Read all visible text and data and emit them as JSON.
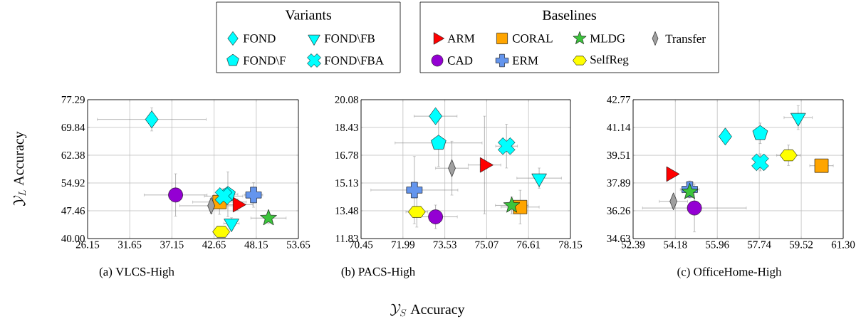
{
  "chart_data": [
    {
      "type": "scatter",
      "title": "(a) VLCS-High",
      "ylabel": "\\mathcal{Y}_L \\text{ Accuracy}",
      "grid": true,
      "legend": "top",
      "legend_title": [
        "Variants",
        "Baselines"
      ],
      "xlim": [
        26.15,
        53.65
      ],
      "xticks": [
        26.15,
        31.65,
        37.15,
        42.65,
        48.15,
        53.65
      ],
      "ylim": [
        40,
        77.29
      ],
      "yticks": [
        {
          "value": 40,
          "label": "40.00"
        },
        47.46,
        54.92,
        62.38,
        69.84,
        77.29
      ],
      "series": [
        {
          "name": "ARM",
          "color": "#ff0000",
          "x": [
            45.69
          ],
          "values": [
            49.1
          ],
          "xerrors": [
            2.0
          ],
          "errors": [
            1.5
          ]
        },
        {
          "name": "CAD",
          "color": "#9400d3",
          "marker": "circle",
          "x": [
            37.63
          ],
          "values": [
            51.7
          ],
          "xerrors": [
            4.1
          ],
          "errors": [
            5.7
          ]
        },
        {
          "name": "CORAL",
          "color": "#ffa500",
          "marker": "square",
          "x": [
            43.36
          ],
          "values": [
            49.8
          ],
          "xerrors": [
            3.5
          ],
          "errors": [
            3.3
          ]
        },
        {
          "name": "ERM",
          "color": "#6495ed",
          "x": [
            47.8
          ],
          "values": [
            51.7
          ],
          "xerrors": [
            1.2
          ],
          "errors": [
            3.3
          ]
        },
        {
          "name": "MLDG",
          "color": "#3cc43c",
          "marker": "star",
          "x": [
            49.75
          ],
          "values": [
            45.5
          ],
          "xerrors": [
            2.3
          ],
          "errors": [
            1.5
          ]
        },
        {
          "name": "SelfReg",
          "color": "#ffff00",
          "x": [
            43.58
          ],
          "values": [
            41.8
          ],
          "xerrors": [
            1.0
          ],
          "errors": [
            null
          ]
        },
        {
          "name": "Transfer",
          "color": "#a0a0a0",
          "x": [
            42.28
          ],
          "values": [
            48.8
          ],
          "xerrors": [
            4.1
          ],
          "errors": [
            2.0
          ]
        },
        {
          "name": "FOND",
          "color": "#00ffff",
          "marker": "diamond",
          "x": [
            34.52
          ],
          "values": [
            72.0
          ],
          "xerrors": [
            7.1
          ],
          "errors": [
            3.1
          ]
        },
        {
          "name": "FOND\\F",
          "color": "#00ffff",
          "x": [
            44.45
          ],
          "values": [
            51.9
          ],
          "xerrors": [
            1.3
          ],
          "errors": [
            6.0
          ]
        },
        {
          "name": "FOND\\FB",
          "color": "#00ffff",
          "x": [
            44.92
          ],
          "values": [
            44.1
          ],
          "xerrors": [
            1.0
          ],
          "errors": [
            1.5
          ]
        },
        {
          "name": "FOND\\FBA",
          "color": "#00ffff",
          "marker": "cross",
          "x": [
            43.89
          ],
          "values": [
            51.4
          ],
          "xerrors": [
            2.5
          ],
          "errors": [
            2.0
          ]
        }
      ]
    },
    {
      "type": "scatter",
      "title": "(b) PACS-High",
      "xlabel": "\\mathcal{Y}_S \\text{ Accuracy}",
      "grid": true,
      "xlim": [
        70.45,
        78.15
      ],
      "xticks": [
        70.45,
        71.99,
        73.53,
        75.07,
        76.61,
        78.15
      ],
      "ylim": [
        11.83,
        20.08
      ],
      "yticks": [
        11.83,
        13.48,
        15.13,
        16.78,
        18.43,
        20.08
      ],
      "series": [
        {
          "color": "#ff0000",
          "x": [
            74.99
          ],
          "values": [
            16.2
          ],
          "xerrors": [
            0.6
          ],
          "errors": [
            2.9
          ]
        },
        {
          "color": "#9400d3",
          "marker": "circle",
          "x": [
            73.19
          ],
          "values": [
            13.12
          ],
          "xerrors": [
            0.8
          ],
          "errors": [
            0.7
          ]
        },
        {
          "color": "#ffa500",
          "marker": "square",
          "x": [
            76.3
          ],
          "values": [
            13.7
          ],
          "xerrors": [
            0.7
          ],
          "errors": [
            1.0
          ]
        },
        {
          "color": "#6495ed",
          "x": [
            72.41
          ],
          "values": [
            14.71
          ],
          "xerrors": [
            1.6
          ],
          "errors": [
            2.0
          ]
        },
        {
          "color": "#3cc43c",
          "marker": "star",
          "x": [
            75.99
          ],
          "values": [
            13.8
          ],
          "xerrors": [
            0.6
          ],
          "errors": [
            0.5
          ]
        },
        {
          "color": "#ffff00",
          "x": [
            72.5
          ],
          "values": [
            13.41
          ],
          "xerrors": [
            0.4
          ],
          "errors": [
            0.9
          ]
        },
        {
          "color": "#a0a0a0",
          "x": [
            73.79
          ],
          "values": [
            16.01
          ],
          "xerrors": [
            0.6
          ],
          "errors": [
            1.6
          ]
        },
        {
          "color": "#00ffff",
          "marker": "diamond",
          "x": [
            73.19
          ],
          "values": [
            19.1
          ],
          "xerrors": [
            0.79
          ],
          "errors": [
            null
          ]
        },
        {
          "color": "#00ffff",
          "x": [
            73.3
          ],
          "values": [
            17.51
          ],
          "xerrors": [
            1.6
          ],
          "errors": [
            1.4
          ]
        },
        {
          "color": "#00ffff",
          "x": [
            77.0
          ],
          "values": [
            15.42
          ],
          "xerrors": [
            0.82
          ],
          "errors": [
            0.6
          ]
        },
        {
          "color": "#00ffff",
          "marker": "cross",
          "x": [
            75.8
          ],
          "values": [
            17.32
          ],
          "xerrors": [
            0.4
          ],
          "errors": [
            1.3
          ]
        }
      ]
    },
    {
      "type": "scatter",
      "title": "(c) OfficeHome-High",
      "grid": true,
      "xlim": [
        52.39,
        61.3
      ],
      "xticks": [
        52.39,
        54.18,
        55.96,
        57.74,
        59.52,
        {
          "value": 61.3,
          "label": "61.30"
        }
      ],
      "ylim": [
        34.63,
        42.77
      ],
      "yticks": [
        34.63,
        36.26,
        37.89,
        39.51,
        41.14,
        42.77
      ],
      "series": [
        {
          "color": "#ff0000",
          "x": [
            53.99
          ],
          "values": [
            38.41
          ],
          "xerrors": [
            null
          ],
          "errors": [
            null
          ]
        },
        {
          "color": "#9400d3",
          "marker": "circle",
          "x": [
            54.99
          ],
          "values": [
            36.42
          ],
          "xerrors": [
            2.2
          ],
          "errors": [
            1.4
          ]
        },
        {
          "color": "#ffa500",
          "marker": "square",
          "x": [
            60.38
          ],
          "values": [
            38.9
          ],
          "xerrors": [
            0.5
          ],
          "errors": [
            null
          ]
        },
        {
          "color": "#6495ed",
          "x": [
            54.79
          ],
          "values": [
            37.51
          ],
          "xerrors": [
            0.4
          ],
          "errors": [
            0.5
          ]
        },
        {
          "color": "#3cc43c",
          "marker": "star",
          "x": [
            54.79
          ],
          "values": [
            37.37
          ],
          "xerrors": [
            0.3
          ],
          "errors": [
            null
          ]
        },
        {
          "color": "#ffff00",
          "x": [
            58.98
          ],
          "values": [
            39.51
          ],
          "xerrors": [
            0.5
          ],
          "errors": [
            0.6
          ]
        },
        {
          "color": "#a0a0a0",
          "x": [
            54.1
          ],
          "values": [
            36.81
          ],
          "xerrors": [
            0.6
          ],
          "errors": [
            null
          ]
        },
        {
          "color": "#00ffff",
          "marker": "diamond",
          "x": [
            56.3
          ],
          "values": [
            40.61
          ],
          "xerrors": [
            null
          ],
          "errors": [
            null
          ]
        },
        {
          "color": "#00ffff",
          "x": [
            57.78
          ],
          "values": [
            40.8
          ],
          "xerrors": [
            null
          ],
          "errors": [
            0.6
          ]
        },
        {
          "color": "#00ffff",
          "x": [
            59.39
          ],
          "values": [
            41.72
          ],
          "xerrors": [
            0.6
          ],
          "errors": [
            0.7
          ]
        },
        {
          "color": "#00ffff",
          "marker": "cross",
          "x": [
            57.78
          ],
          "values": [
            39.1
          ],
          "xerrors": [
            null
          ],
          "errors": [
            0.5
          ]
        }
      ]
    }
  ]
}
